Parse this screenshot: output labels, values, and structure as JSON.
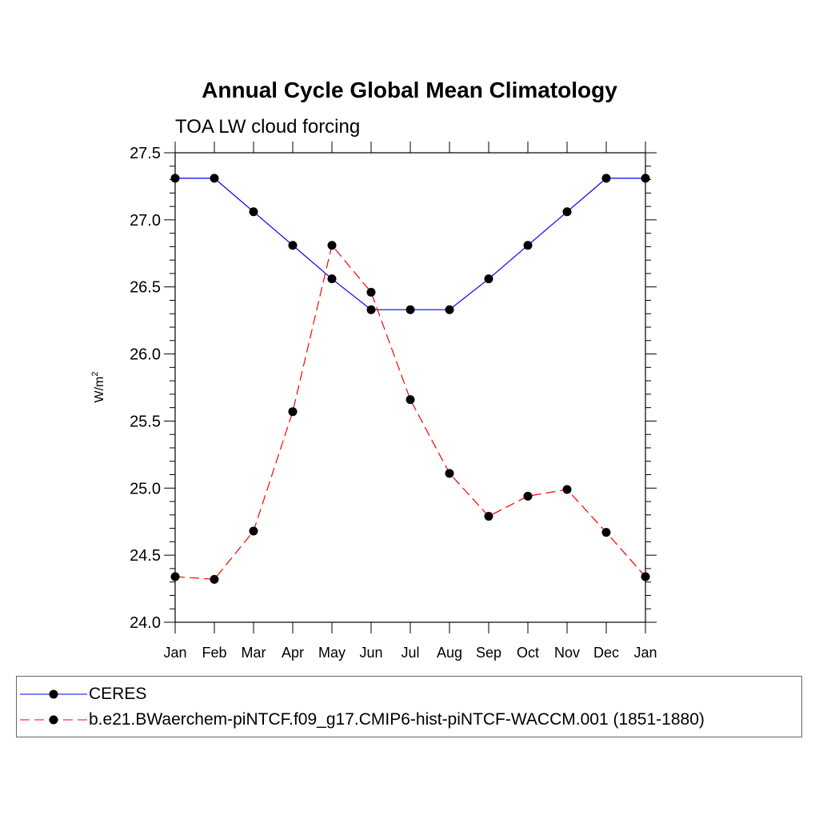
{
  "chart_data": {
    "type": "line",
    "title": "Annual Cycle Global Mean Climatology",
    "subtitle": "TOA LW cloud forcing",
    "xlabel": "",
    "ylabel": "W/m",
    "ylabel_sup": "2",
    "ylim": [
      24.0,
      27.5
    ],
    "yticks": [
      "24.0",
      "24.5",
      "25.0",
      "25.5",
      "26.0",
      "26.5",
      "27.0",
      "27.5"
    ],
    "categories": [
      "Jan",
      "Feb",
      "Mar",
      "Apr",
      "May",
      "Jun",
      "Jul",
      "Aug",
      "Sep",
      "Oct",
      "Nov",
      "Dec",
      "Jan"
    ],
    "series": [
      {
        "name": "CERES",
        "color": "#0000ff",
        "dash": "solid",
        "values": [
          27.31,
          27.31,
          27.06,
          26.81,
          26.56,
          26.33,
          26.33,
          26.33,
          26.56,
          26.81,
          27.06,
          27.31,
          27.31
        ]
      },
      {
        "name": "b.e21.BWaerchem-piNTCF.f09_g17.CMIP6-hist-piNTCF-WACCM.001 (1851-1880)",
        "color": "#ff0000",
        "dash": "dashed",
        "values": [
          24.34,
          24.32,
          24.68,
          25.57,
          26.81,
          26.46,
          25.66,
          25.11,
          24.79,
          24.94,
          24.99,
          24.67,
          24.34
        ]
      }
    ],
    "legend_position": "bottom"
  }
}
